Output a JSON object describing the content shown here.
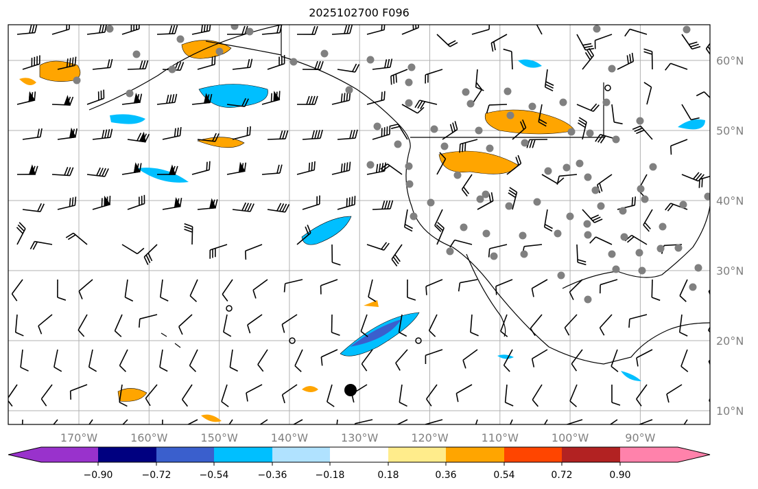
{
  "title": "2025102700 F096",
  "lon_labels": [
    "170°W",
    "160°W",
    "150°W",
    "140°W",
    "130°W",
    "120°W",
    "110°W",
    "100°W",
    "90°W"
  ],
  "lat_labels": [
    "60°N",
    "50°N",
    "40°N",
    "30°N",
    "20°N",
    "10°N"
  ],
  "colorbar": {
    "ticks": [
      "−0.90",
      "−0.72",
      "−0.54",
      "−0.36",
      "−0.18",
      "0.18",
      "0.36",
      "0.54",
      "0.72",
      "0.90"
    ],
    "colors": [
      "#9932CC",
      "#000080",
      "#3A5FCD",
      "#00BFFF",
      "#B0E2FF",
      "#FFFFFF",
      "#FFEC8B",
      "#FFA500",
      "#FF4500",
      "#B22222",
      "#FF82AB"
    ]
  }
}
